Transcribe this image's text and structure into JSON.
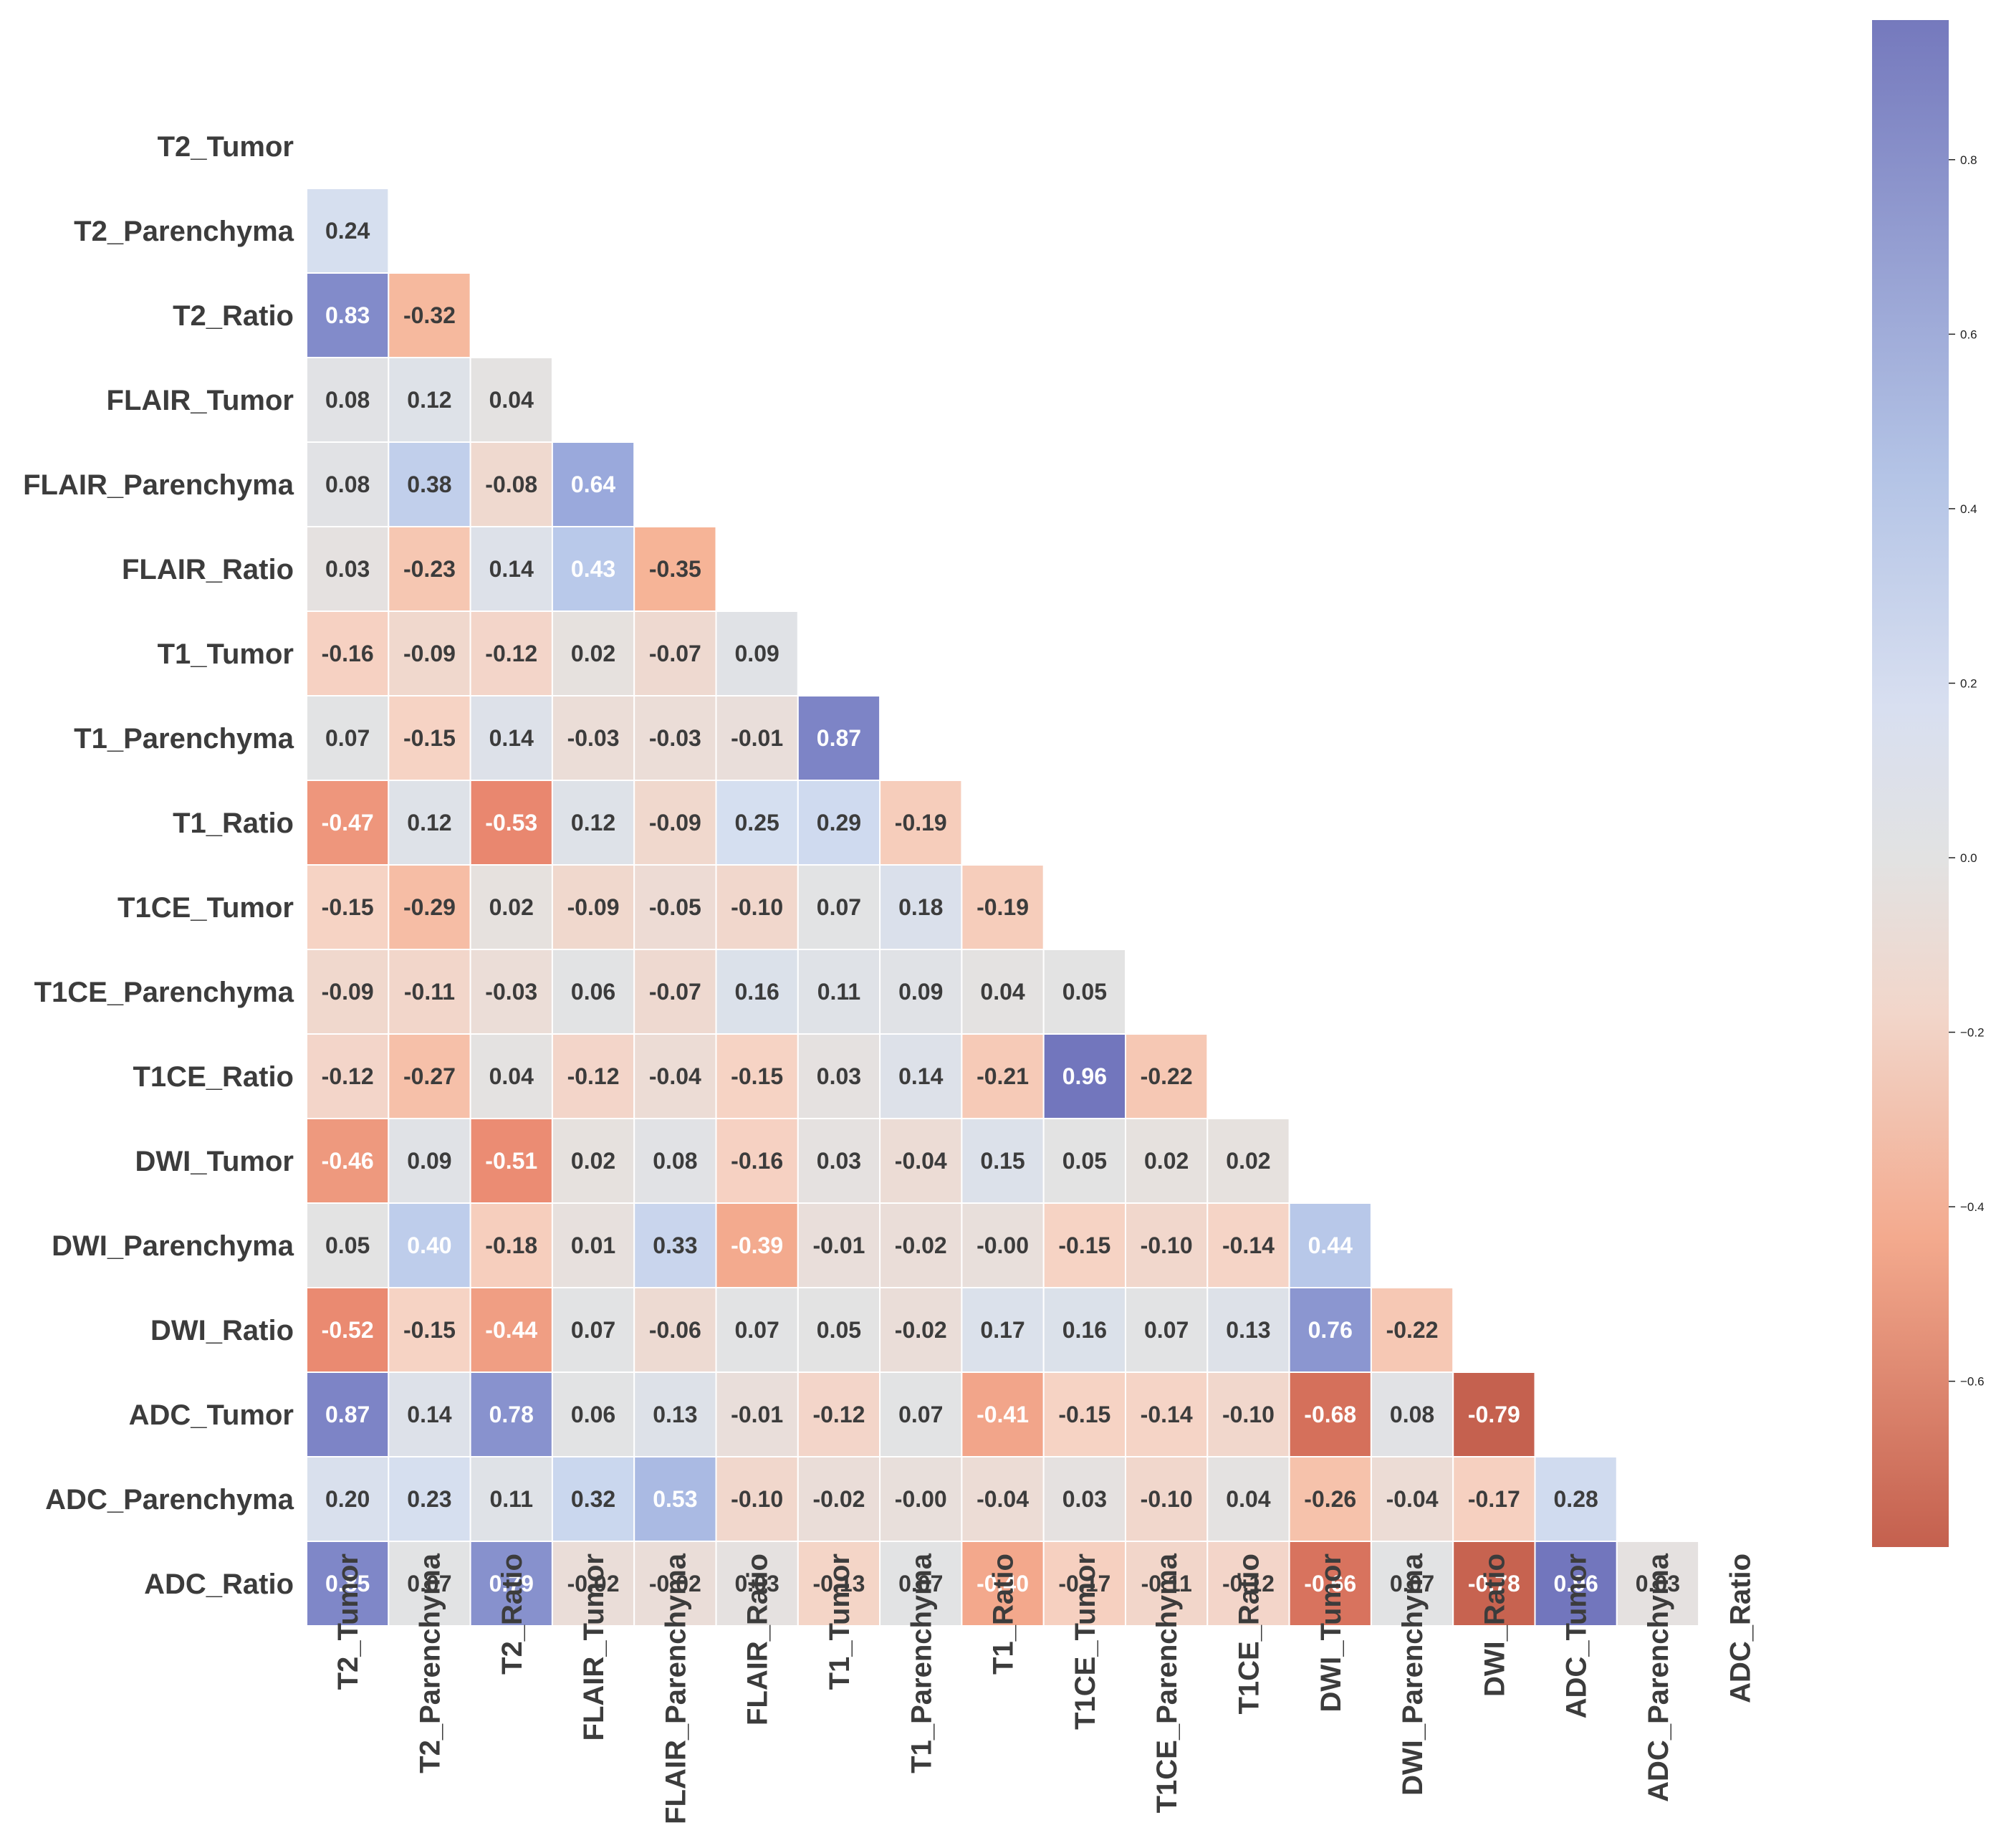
{
  "chart_data": {
    "type": "heatmap",
    "title": "",
    "xlabel": "",
    "ylabel": "",
    "mask": "upper-triangle-including-diagonal",
    "labels": [
      "T2_Tumor",
      "T2_Parenchyma",
      "T2_Ratio",
      "FLAIR_Tumor",
      "FLAIR_Parenchyma",
      "FLAIR_Ratio",
      "T1_Tumor",
      "T1_Parenchyma",
      "T1_Ratio",
      "T1CE_Tumor",
      "T1CE_Parenchyma",
      "T1CE_Ratio",
      "DWI_Tumor",
      "DWI_Parenchyma",
      "DWI_Ratio",
      "ADC_Tumor",
      "ADC_Parenchyma",
      "ADC_Ratio"
    ],
    "values": [
      [],
      [
        "0.24"
      ],
      [
        "0.83",
        "-0.32"
      ],
      [
        "0.08",
        "0.12",
        "0.04"
      ],
      [
        "0.08",
        "0.38",
        "-0.08",
        "0.64"
      ],
      [
        "0.03",
        "-0.23",
        "0.14",
        "0.43",
        "-0.35"
      ],
      [
        "-0.16",
        "-0.09",
        "-0.12",
        "0.02",
        "-0.07",
        "0.09"
      ],
      [
        "0.07",
        "-0.15",
        "0.14",
        "-0.03",
        "-0.03",
        "-0.01",
        "0.87"
      ],
      [
        "-0.47",
        "0.12",
        "-0.53",
        "0.12",
        "-0.09",
        "0.25",
        "0.29",
        "-0.19"
      ],
      [
        "-0.15",
        "-0.29",
        "0.02",
        "-0.09",
        "-0.05",
        "-0.10",
        "0.07",
        "0.18",
        "-0.19"
      ],
      [
        "-0.09",
        "-0.11",
        "-0.03",
        "0.06",
        "-0.07",
        "0.16",
        "0.11",
        "0.09",
        "0.04",
        "0.05"
      ],
      [
        "-0.12",
        "-0.27",
        "0.04",
        "-0.12",
        "-0.04",
        "-0.15",
        "0.03",
        "0.14",
        "-0.21",
        "0.96",
        "-0.22"
      ],
      [
        "-0.46",
        "0.09",
        "-0.51",
        "0.02",
        "0.08",
        "-0.16",
        "0.03",
        "-0.04",
        "0.15",
        "0.05",
        "0.02",
        "0.02"
      ],
      [
        "0.05",
        "0.40",
        "-0.18",
        "0.01",
        "0.33",
        "-0.39",
        "-0.01",
        "-0.02",
        "-0.00",
        "-0.15",
        "-0.10",
        "-0.14",
        "0.44"
      ],
      [
        "-0.52",
        "-0.15",
        "-0.44",
        "0.07",
        "-0.06",
        "0.07",
        "0.05",
        "-0.02",
        "0.17",
        "0.16",
        "0.07",
        "0.13",
        "0.76",
        "-0.22"
      ],
      [
        "0.87",
        "0.14",
        "0.78",
        "0.06",
        "0.13",
        "-0.01",
        "-0.12",
        "0.07",
        "-0.41",
        "-0.15",
        "-0.14",
        "-0.10",
        "-0.68",
        "0.08",
        "-0.79"
      ],
      [
        "0.20",
        "0.23",
        "0.11",
        "0.32",
        "0.53",
        "-0.10",
        "-0.02",
        "-0.00",
        "-0.04",
        "0.03",
        "-0.10",
        "0.04",
        "-0.26",
        "-0.04",
        "-0.17",
        "0.28"
      ],
      [
        "0.85",
        "0.07",
        "0.79",
        "-0.02",
        "-0.02",
        "0.03",
        "-0.13",
        "0.07",
        "-0.40",
        "-0.17",
        "-0.11",
        "-0.12",
        "-0.66",
        "0.07",
        "-0.78",
        "0.96",
        "0.03"
      ]
    ],
    "colorbar": {
      "range": [
        -0.79,
        0.96
      ],
      "ticks": [
        "0.8",
        "0.6",
        "0.4",
        "0.2",
        "0.0",
        "−0.2",
        "−0.4",
        "−0.6"
      ],
      "tick_values": [
        0.8,
        0.6,
        0.4,
        0.2,
        0.0,
        -0.2,
        -0.4,
        -0.6
      ],
      "colormap": "diverging",
      "negative_color": "#c4604e",
      "neutral_color": "#e2e2e2",
      "positive_color": "#7579bd"
    },
    "grid": true,
    "legend": "colorbar-right"
  }
}
